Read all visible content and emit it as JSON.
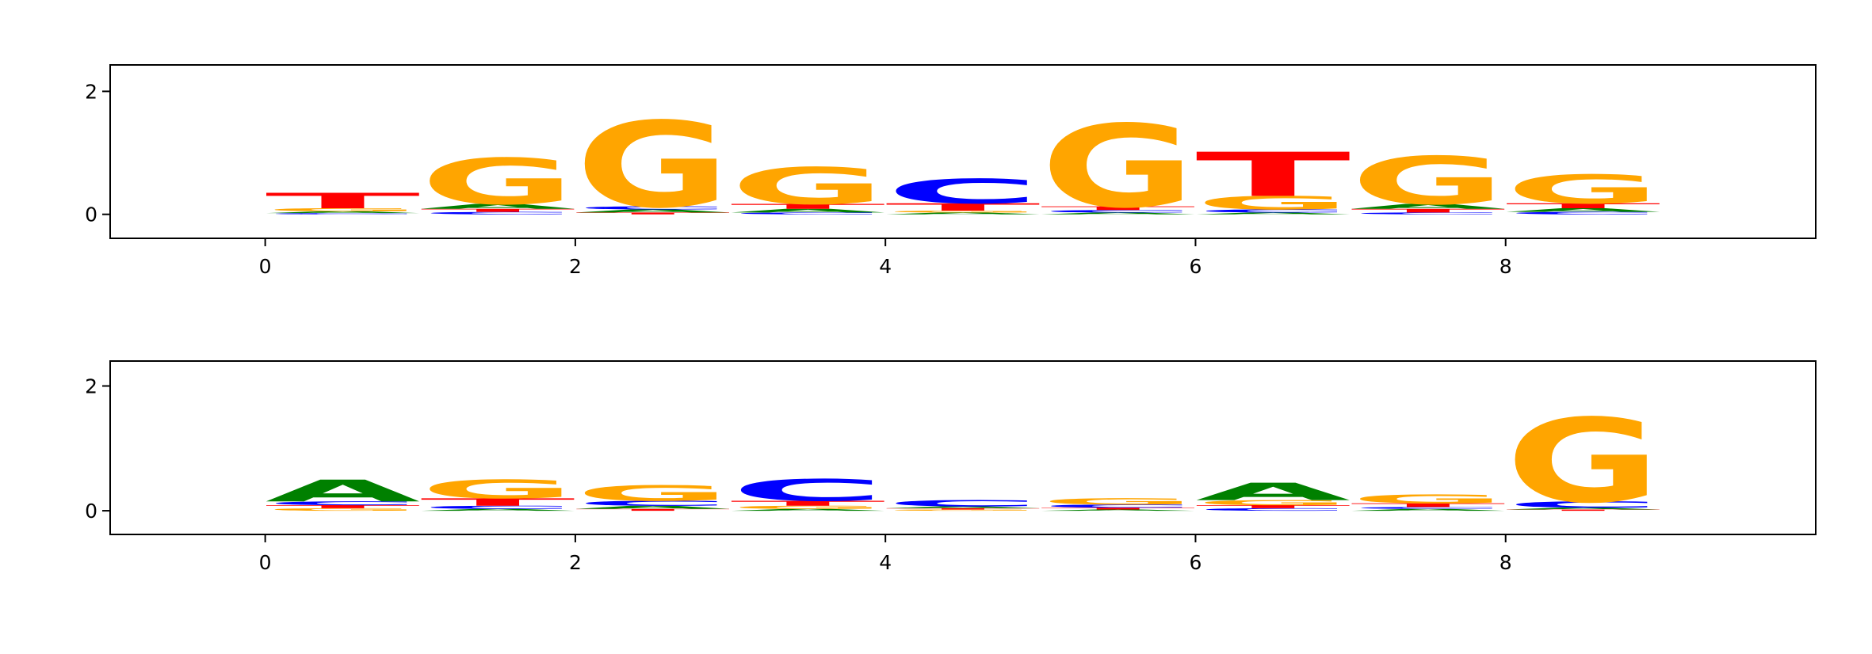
{
  "chart_data": [
    {
      "type": "logo",
      "x": [
        0,
        1,
        2,
        3,
        4,
        5,
        6,
        7,
        8
      ],
      "series": [
        {
          "name": "A",
          "color": "#008000",
          "values": [
            0.03,
            0.08,
            0.05,
            0.06,
            0.03,
            0.03,
            0.03,
            0.08,
            0.06
          ]
        },
        {
          "name": "C",
          "color": "#0000ff",
          "values": [
            0.02,
            0.04,
            0.05,
            0.03,
            0.4,
            0.04,
            0.05,
            0.03,
            0.04
          ]
        },
        {
          "name": "G",
          "color": "#ffa500",
          "values": [
            0.05,
            0.75,
            1.4,
            0.6,
            0.03,
            1.35,
            0.22,
            0.78,
            0.47
          ]
        },
        {
          "name": "T",
          "color": "#ff0000",
          "values": [
            0.25,
            0.05,
            0.03,
            0.08,
            0.12,
            0.06,
            0.72,
            0.06,
            0.08
          ]
        }
      ],
      "xlim": [
        -1,
        10
      ],
      "xticks": [
        0,
        2,
        4,
        6,
        8
      ],
      "ylim": [
        -0.39,
        2.43
      ],
      "yticks": [
        0,
        2
      ]
    },
    {
      "type": "logo",
      "x": [
        0,
        1,
        2,
        3,
        4,
        5,
        6,
        7,
        8
      ],
      "series": [
        {
          "name": "A",
          "color": "#008000",
          "values": [
            0.35,
            0.03,
            0.05,
            0.03,
            0.03,
            0.02,
            0.28,
            0.03,
            0.03
          ]
        },
        {
          "name": "C",
          "color": "#0000ff",
          "values": [
            0.06,
            0.05,
            0.08,
            0.35,
            0.1,
            0.05,
            0.04,
            0.03,
            0.1
          ]
        },
        {
          "name": "G",
          "color": "#ffa500",
          "values": [
            0.04,
            0.3,
            0.25,
            0.05,
            0.02,
            0.1,
            0.08,
            0.14,
            1.35
          ]
        },
        {
          "name": "T",
          "color": "#ff0000",
          "values": [
            0.05,
            0.12,
            0.03,
            0.08,
            0.02,
            0.03,
            0.05,
            0.06,
            0.02
          ]
        }
      ],
      "xlim": [
        -1,
        10
      ],
      "xticks": [
        0,
        2,
        4,
        6,
        8
      ],
      "ylim": [
        -0.38,
        2.4
      ],
      "yticks": [
        0,
        2
      ]
    }
  ]
}
